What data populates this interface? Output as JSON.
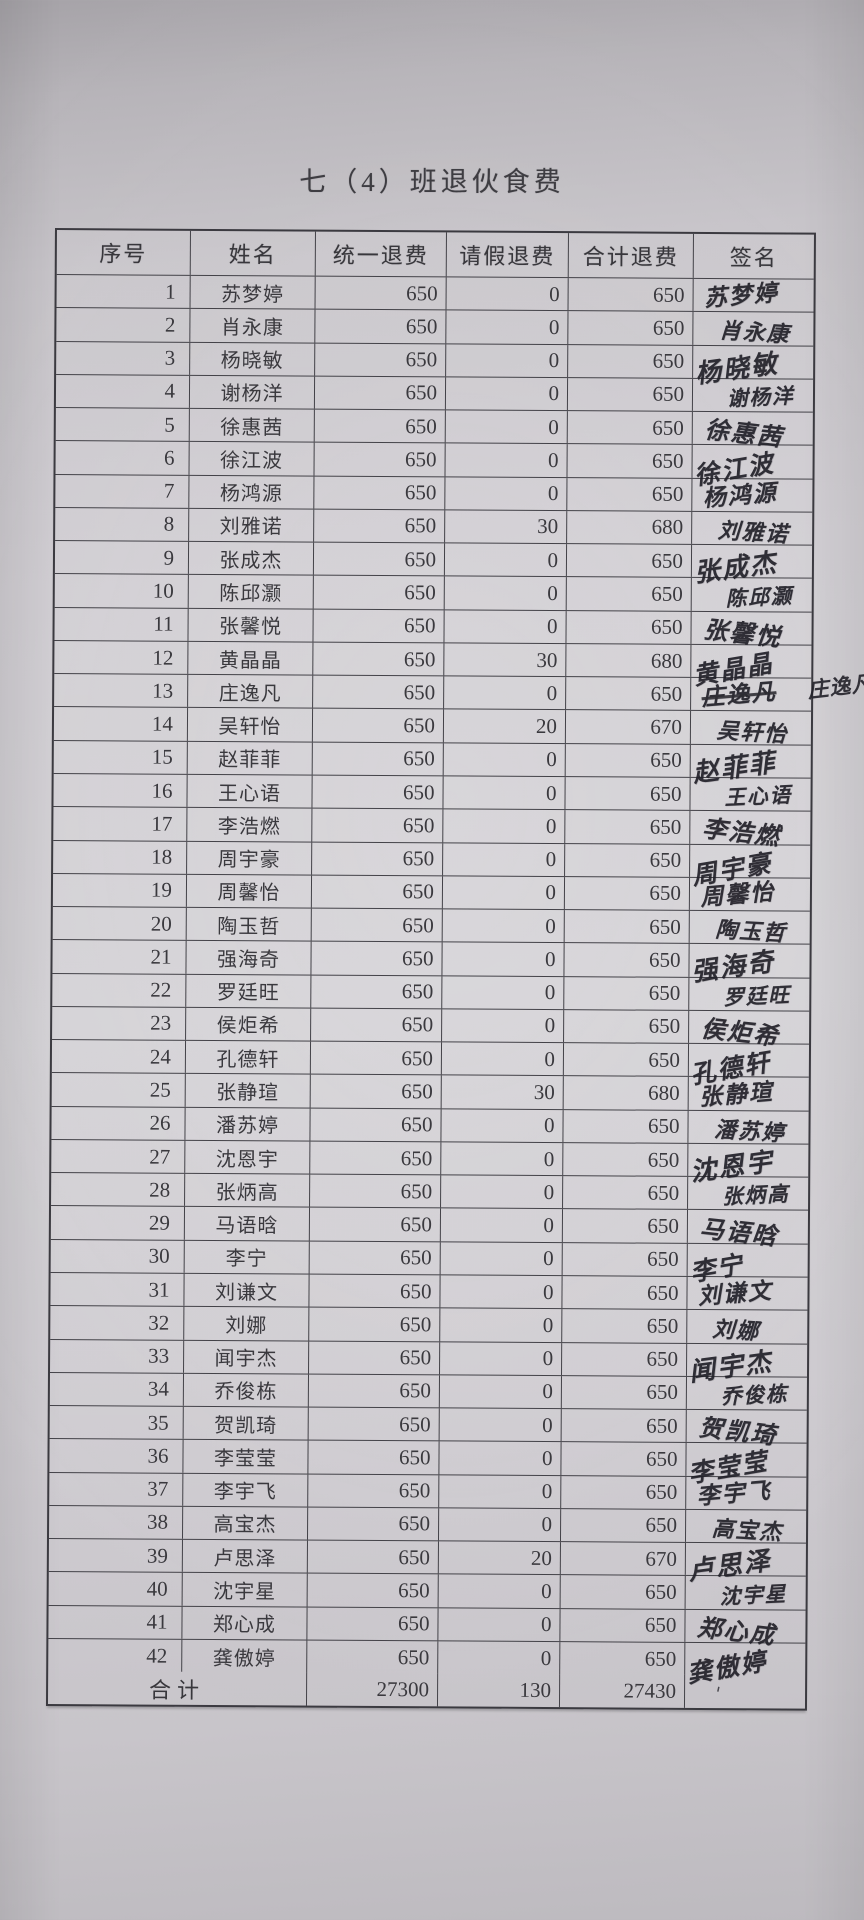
{
  "page": {
    "title": "七（4）班退伙食费"
  },
  "table": {
    "headers": [
      "序号",
      "姓名",
      "统一退费",
      "请假退费",
      "合计退费",
      "签名"
    ],
    "rows": [
      [
        1,
        "苏梦婷",
        650,
        0,
        650
      ],
      [
        2,
        "肖永康",
        650,
        0,
        650
      ],
      [
        3,
        "杨晓敏",
        650,
        0,
        650
      ],
      [
        4,
        "谢杨洋",
        650,
        0,
        650
      ],
      [
        5,
        "徐惠茜",
        650,
        0,
        650
      ],
      [
        6,
        "徐江波",
        650,
        0,
        650
      ],
      [
        7,
        "杨鸿源",
        650,
        0,
        650
      ],
      [
        8,
        "刘雅诺",
        650,
        30,
        680
      ],
      [
        9,
        "张成杰",
        650,
        0,
        650
      ],
      [
        10,
        "陈邱灏",
        650,
        0,
        650
      ],
      [
        11,
        "张馨悦",
        650,
        0,
        650
      ],
      [
        12,
        "黄晶晶",
        650,
        30,
        680
      ],
      [
        13,
        "庄逸凡",
        650,
        0,
        650
      ],
      [
        14,
        "吴轩怡",
        650,
        20,
        670
      ],
      [
        15,
        "赵菲菲",
        650,
        0,
        650
      ],
      [
        16,
        "王心语",
        650,
        0,
        650
      ],
      [
        17,
        "李浩燃",
        650,
        0,
        650
      ],
      [
        18,
        "周宇豪",
        650,
        0,
        650
      ],
      [
        19,
        "周馨怡",
        650,
        0,
        650
      ],
      [
        20,
        "陶玉哲",
        650,
        0,
        650
      ],
      [
        21,
        "强海奇",
        650,
        0,
        650
      ],
      [
        22,
        "罗廷旺",
        650,
        0,
        650
      ],
      [
        23,
        "侯炬希",
        650,
        0,
        650
      ],
      [
        24,
        "孔德轩",
        650,
        0,
        650
      ],
      [
        25,
        "张静瑄",
        650,
        30,
        680
      ],
      [
        26,
        "潘苏婷",
        650,
        0,
        650
      ],
      [
        27,
        "沈恩宇",
        650,
        0,
        650
      ],
      [
        28,
        "张炳高",
        650,
        0,
        650
      ],
      [
        29,
        "马语晗",
        650,
        0,
        650
      ],
      [
        30,
        "李宁",
        650,
        0,
        650
      ],
      [
        31,
        "刘谦文",
        650,
        0,
        650
      ],
      [
        32,
        "刘娜",
        650,
        0,
        650
      ],
      [
        33,
        "闻宇杰",
        650,
        0,
        650
      ],
      [
        34,
        "乔俊栋",
        650,
        0,
        650
      ],
      [
        35,
        "贺凯琦",
        650,
        0,
        650
      ],
      [
        36,
        "李莹莹",
        650,
        0,
        650
      ],
      [
        37,
        "李宇飞",
        650,
        0,
        650
      ],
      [
        38,
        "高宝杰",
        650,
        0,
        650
      ],
      [
        39,
        "卢思泽",
        650,
        20,
        670
      ],
      [
        40,
        "沈宇星",
        650,
        0,
        650
      ],
      [
        41,
        "郑心成",
        650,
        0,
        650
      ],
      [
        42,
        "龚傲婷",
        650,
        0,
        650
      ]
    ],
    "struck_signature_row": 13,
    "overflow_signature_note": "庄逸凡",
    "total": {
      "label": "合计",
      "unified": "27300",
      "leave": "130",
      "total": "27430",
      "signature_mark": "'"
    }
  }
}
